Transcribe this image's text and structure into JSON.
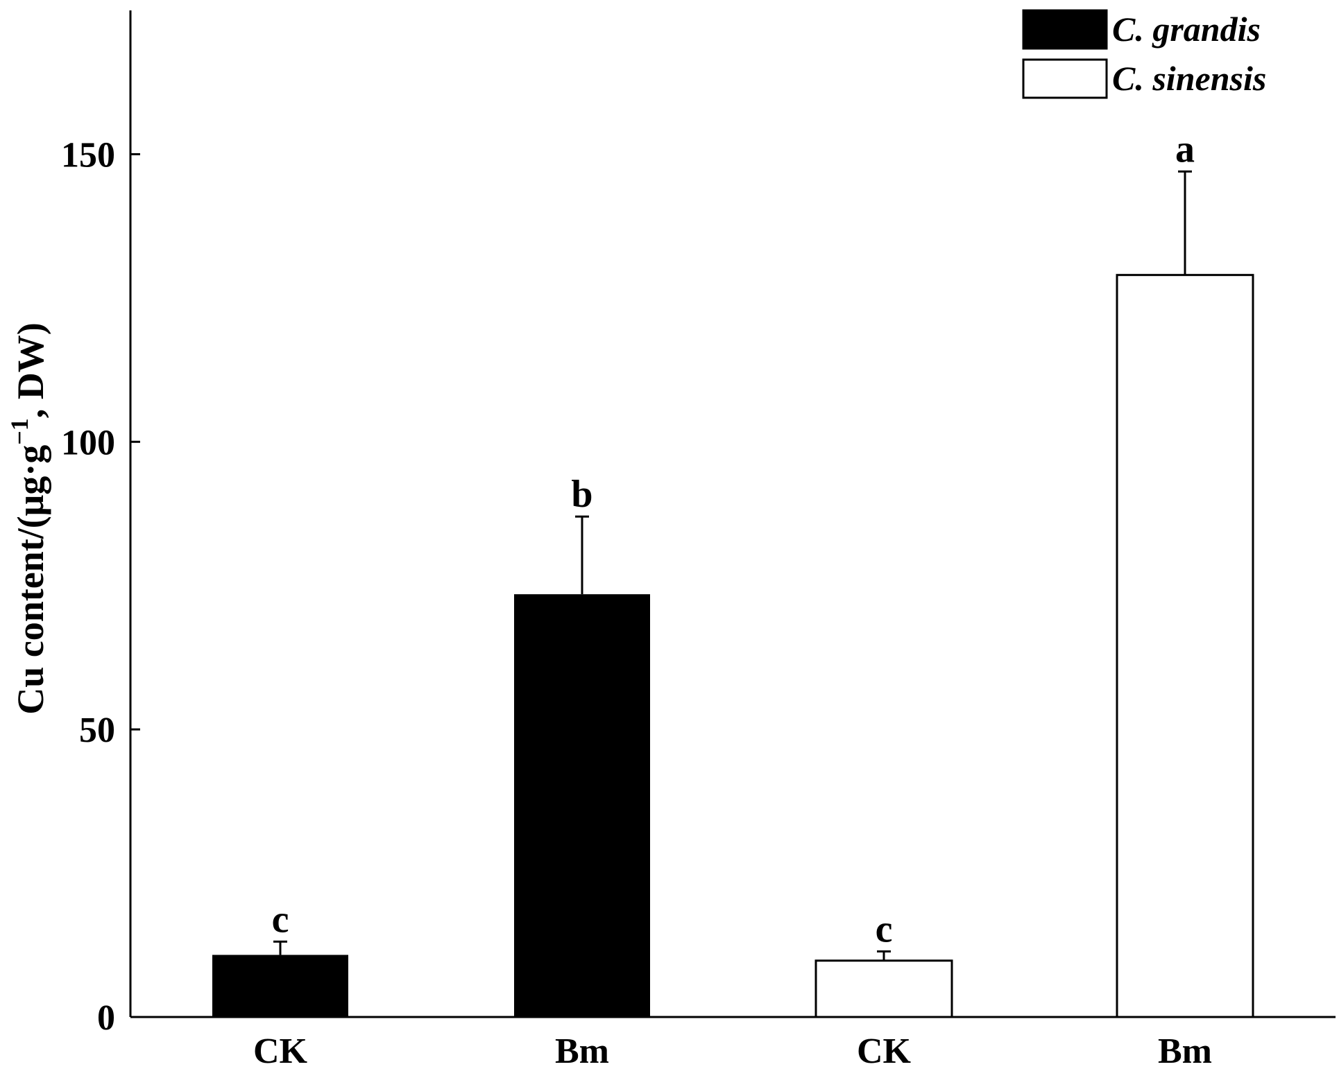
{
  "chart_data": {
    "type": "bar",
    "ylabel_main": "Cu content/(μg·g",
    "ylabel_sup": "−1",
    "ylabel_tail": ", DW)",
    "ylim": [
      0,
      175
    ],
    "yticks": [
      0,
      50,
      100,
      150
    ],
    "legend_position": "top-right",
    "series": [
      {
        "name": "C. grandis",
        "color": "#000000",
        "fill": "solid"
      },
      {
        "name": "C. sinensis",
        "color": "#ffffff",
        "fill": "outline"
      }
    ],
    "bars": [
      {
        "category": "CK",
        "series": 0,
        "value": 10.8,
        "error": 2.3,
        "letter": "c"
      },
      {
        "category": "Bm",
        "series": 0,
        "value": 73.5,
        "error": 13.5,
        "letter": "b"
      },
      {
        "category": "CK",
        "series": 1,
        "value": 9.8,
        "error": 1.6,
        "letter": "c"
      },
      {
        "category": "Bm",
        "series": 1,
        "value": 129,
        "error": 18,
        "letter": "a"
      }
    ]
  }
}
